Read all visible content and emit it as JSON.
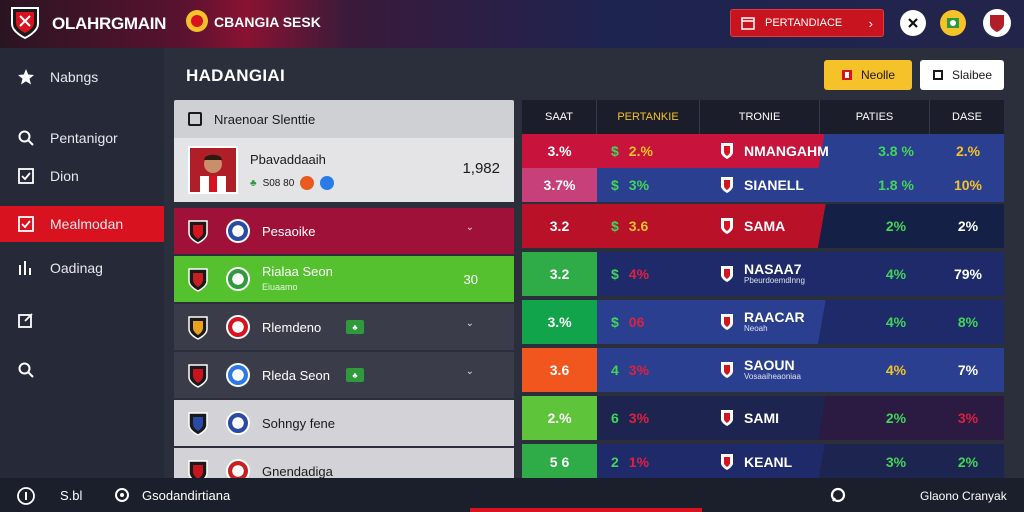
{
  "header": {
    "brand": "OLAHRGMAIN",
    "competition": "CBANGIA SESK",
    "cta_label": "PERTANDIACE",
    "cta_arrow": "›"
  },
  "sidebar": {
    "items": [
      {
        "label": "Nabngs",
        "icon": "star-icon"
      },
      {
        "label": "Pentanigor",
        "icon": "search-icon"
      },
      {
        "label": "Dion",
        "icon": "checkbox-icon"
      },
      {
        "label": "Mealmodan",
        "icon": "checkbox-icon",
        "active": true
      },
      {
        "label": "Oadinag",
        "icon": "chart-icon"
      },
      {
        "label": "",
        "icon": "edit-icon"
      },
      {
        "label": "",
        "icon": "search-icon"
      }
    ]
  },
  "main": {
    "title": "HADANGIAI",
    "btn_yellow": "Neolle",
    "btn_white": "Slaibee"
  },
  "list": {
    "header": "Nraenoar Slenttie",
    "profile": {
      "name": "Pbavaddaaih",
      "sub": "S08 80",
      "value": "1,982"
    },
    "rows": [
      {
        "name": "Pesaoike",
        "bg": "#a0113a",
        "color": "#fff",
        "chev": "⌄"
      },
      {
        "name": "Rialaa Seon",
        "sub": "Eiuaamo",
        "bg": "#55c12e",
        "color": "#fff",
        "value": "30"
      },
      {
        "name": "Rlemdeno",
        "bg": "#3a3d49",
        "color": "#fff",
        "chev": "⌄"
      },
      {
        "name": "Rleda Seon",
        "bg": "#3a3d49",
        "color": "#fff",
        "chev": "⌄"
      },
      {
        "name": "Sohngy fene",
        "bg": "#d3d3d7",
        "color": "#1a1a1a"
      },
      {
        "name": "Gnendadiga",
        "bg": "#d3d3d7",
        "color": "#1a1a1a"
      }
    ]
  },
  "table": {
    "headers": [
      "SAAT",
      "PERTANKIE",
      "TRONIE",
      "PATIES",
      "DASE"
    ],
    "rows": [
      {
        "rank": "3.%",
        "cur": "$",
        "pct": "2.%",
        "team": "NMANGAHM",
        "sub": "",
        "rating": "3.8 %",
        "base": "2.%",
        "bg": "#c8143c",
        "pctColor": "#f5c22a",
        "ratColor": "#41d65a",
        "baseColor": "#f5c22a",
        "right": "#2a3f8f"
      },
      {
        "rank": "3.7%",
        "cur": "$",
        "pct": "3%",
        "team": "SIANELL",
        "sub": "",
        "rating": "1.8 %",
        "base": "10%",
        "bg": "#2a3f8f",
        "rankBg": "#c8407a",
        "pctColor": "#41d65a",
        "ratColor": "#41d65a",
        "baseColor": "#f5c22a",
        "right": "#2a3f8f"
      },
      {
        "rank": "3.2",
        "cur": "$",
        "pct": "3.6",
        "team": "SAMA",
        "sub": "",
        "rating": "2%",
        "base": "2%",
        "bg": "#b81128",
        "pctColor": "#f5c22a",
        "ratColor": "#41d65a",
        "baseColor": "#fff",
        "right": "#152046"
      },
      {
        "rank": "3.2",
        "cur": "$",
        "pct": "4%",
        "team": "NASAA7",
        "sub": "Pbeurdoemdlnng",
        "rating": "4%",
        "base": "79%",
        "bg": "#1e2a6a",
        "rankBg": "#2fab48",
        "pctColor": "#e02040",
        "ratColor": "#41d65a",
        "baseColor": "#fff",
        "right": "#1e2a6a"
      },
      {
        "rank": "3.%",
        "cur": "$",
        "pct": "06",
        "team": "RAACAR",
        "sub": "Neoah",
        "rating": "4%",
        "base": "8%",
        "bg": "#2a3f8f",
        "rankBg": "#12a44a",
        "pctColor": "#e02040",
        "ratColor": "#41d65a",
        "baseColor": "#41d65a",
        "right": "#1e2a6a"
      },
      {
        "rank": "3.6",
        "cur": "4",
        "pct": "3%",
        "team": "SAOUN",
        "sub": "Vosaaiheaoniaa",
        "rating": "4%",
        "base": "7%",
        "bg": "#2a3f8f",
        "rankBg": "#f0561e",
        "pctColor": "#e02040",
        "ratColor": "#f5c22a",
        "baseColor": "#fff",
        "right": "#2a3f8f"
      },
      {
        "rank": "2.%",
        "cur": "6",
        "pct": "3%",
        "team": "SAMI",
        "sub": "",
        "rating": "2%",
        "base": "3%",
        "bg": "#1e2450",
        "rankBg": "#5ec43a",
        "pctColor": "#e02040",
        "ratColor": "#41d65a",
        "baseColor": "#e02040",
        "right": "#2b1a42"
      },
      {
        "rank": "5 6",
        "cur": "2",
        "pct": "1%",
        "team": "KEANL",
        "sub": "",
        "rating": "3%",
        "base": "2%",
        "bg": "#1e2a6a",
        "rankBg": "#2fab48",
        "pctColor": "#e02040",
        "ratColor": "#41d65a",
        "baseColor": "#41d65a",
        "right": "#1e2450"
      }
    ]
  },
  "bottom": {
    "left_label": "S.bl",
    "center_label": "Gsodandirtiana",
    "right_label": "Glaono Cranyak"
  },
  "colors": {
    "accent": "#d8121e",
    "yellow": "#f5c22a",
    "green": "#41d65a",
    "navy": "#1e2a6a"
  }
}
